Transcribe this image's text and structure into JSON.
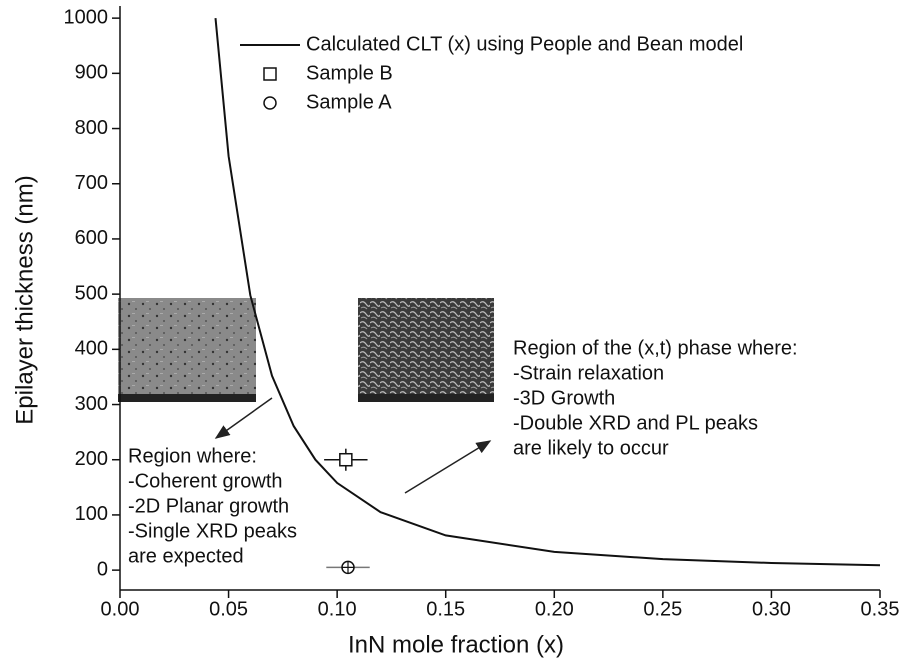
{
  "chart_data": {
    "type": "line",
    "xlabel": "InN mole fraction (x)",
    "ylabel": "Epilayer thickness (nm)",
    "xlim": [
      0,
      0.35
    ],
    "ylim": [
      -36,
      1022
    ],
    "xticks": [
      {
        "value": 0,
        "label": "0.00"
      },
      {
        "value": 0.05,
        "label": "0.05"
      },
      {
        "value": 0.1,
        "label": "0.10"
      },
      {
        "value": 0.15,
        "label": "0.15"
      },
      {
        "value": 0.2,
        "label": "0.20"
      },
      {
        "value": 0.25,
        "label": "0.25"
      },
      {
        "value": 0.3,
        "label": "0.30"
      },
      {
        "value": 0.35,
        "label": "0.35"
      }
    ],
    "yticks": [
      0,
      100,
      200,
      300,
      400,
      500,
      600,
      700,
      800,
      900,
      1000
    ],
    "legend": "upper right",
    "series": [
      {
        "name": "Calculated CLT (x) using People and Bean model",
        "type": "line",
        "color": "#111111",
        "x": [
          0.044,
          0.05,
          0.06,
          0.07,
          0.08,
          0.09,
          0.1,
          0.12,
          0.15,
          0.2,
          0.25,
          0.3,
          0.35
        ],
        "values": [
          1000,
          750,
          498,
          352,
          261,
          200,
          158,
          105,
          63,
          33,
          20,
          13,
          9
        ]
      },
      {
        "name": "Sample B",
        "type": "scatter",
        "marker": "square",
        "color": "#111111",
        "x": [
          0.104
        ],
        "values": [
          200
        ],
        "xerr": [
          0.01
        ],
        "yerr": [
          20
        ]
      },
      {
        "name": "Sample A",
        "type": "scatter",
        "marker": "circle-plus",
        "color": "#111111",
        "x": [
          0.105
        ],
        "values": [
          5
        ],
        "xerr": [
          0.01
        ]
      }
    ],
    "annotations": [
      {
        "lines": [
          "Region where:",
          "-Coherent growth",
          "-2D Planar growth",
          "-Single XRD peaks",
          "are expected"
        ]
      },
      {
        "lines": [
          "Region of the (x,t) phase where:",
          "-Strain relaxation",
          "-3D Growth",
          "-Double XRD and PL peaks",
          "are likely to occur"
        ]
      }
    ]
  }
}
